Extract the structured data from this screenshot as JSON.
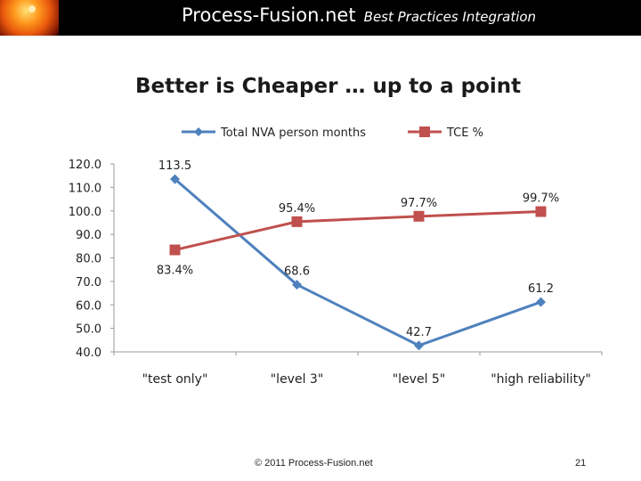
{
  "header": {
    "site_name": "Process-Fusion.net",
    "tagline": "Best Practices Integration"
  },
  "footer": {
    "copyright": "© 2011 Process-Fusion.net",
    "page_number": "21"
  },
  "colors": {
    "nva_series": "#4f81bd",
    "tce_series": "#c0504d",
    "axis": "#9a9a9a",
    "text": "#222222"
  },
  "chart_data": {
    "type": "line",
    "title": "Better is Cheaper … up to a point",
    "categories": [
      "\"test only\"",
      "\"level 3\"",
      "\"level  5\"",
      "\"high reliability\""
    ],
    "ylim": [
      40,
      120
    ],
    "ystep": 10,
    "ytick_labels": [
      "40.0",
      "50.0",
      "60.0",
      "70.0",
      "80.0",
      "90.0",
      "100.0",
      "110.0",
      "120.0"
    ],
    "grid": false,
    "legend_position": "top",
    "series": [
      {
        "name": "Total NVA person months",
        "marker": "diamond",
        "values": [
          113.5,
          68.6,
          42.7,
          61.2
        ],
        "labels": [
          "113.5",
          "68.6",
          "42.7",
          "61.2"
        ],
        "label_position": [
          "above",
          "above",
          "above",
          "above"
        ]
      },
      {
        "name": "TCE %",
        "marker": "square",
        "values": [
          83.4,
          95.4,
          97.7,
          99.7
        ],
        "labels": [
          "83.4%",
          "95.4%",
          "97.7%",
          "99.7%"
        ],
        "label_position": [
          "below",
          "above",
          "above",
          "above"
        ]
      }
    ]
  }
}
